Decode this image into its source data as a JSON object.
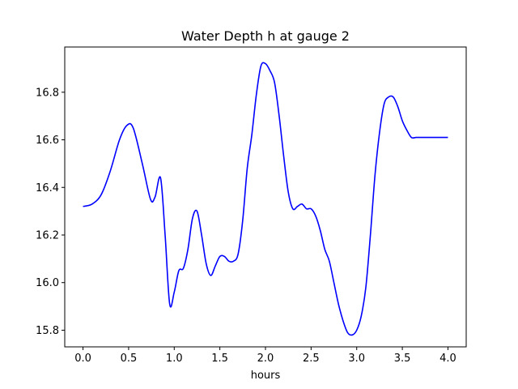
{
  "chart_data": {
    "type": "line",
    "title": "Water Depth h at gauge 2",
    "xlabel": "hours",
    "ylabel": "",
    "xlim": [
      -0.2,
      4.2
    ],
    "ylim": [
      15.73,
      16.99
    ],
    "xticks": [
      0.0,
      0.5,
      1.0,
      1.5,
      2.0,
      2.5,
      3.0,
      3.5,
      4.0
    ],
    "xtick_labels": [
      "0.0",
      "0.5",
      "1.0",
      "1.5",
      "2.0",
      "2.5",
      "3.0",
      "3.5",
      "4.0"
    ],
    "yticks": [
      15.8,
      16.0,
      16.2,
      16.4,
      16.6,
      16.8
    ],
    "ytick_labels": [
      "15.8",
      "16.0",
      "16.2",
      "16.4",
      "16.6",
      "16.8"
    ],
    "grid": false,
    "series": [
      {
        "color": "#0000ff",
        "x": [
          0.0,
          0.1,
          0.2,
          0.3,
          0.4,
          0.48,
          0.55,
          0.65,
          0.74,
          0.79,
          0.85,
          0.9,
          0.95,
          1.0,
          1.05,
          1.1,
          1.15,
          1.2,
          1.25,
          1.3,
          1.35,
          1.4,
          1.45,
          1.5,
          1.55,
          1.6,
          1.65,
          1.7,
          1.75,
          1.8,
          1.85,
          1.9,
          1.95,
          2.0,
          2.05,
          2.1,
          2.15,
          2.2,
          2.25,
          2.3,
          2.35,
          2.4,
          2.45,
          2.5,
          2.55,
          2.6,
          2.65,
          2.7,
          2.75,
          2.8,
          2.85,
          2.9,
          2.95,
          3.0,
          3.05,
          3.1,
          3.15,
          3.2,
          3.25,
          3.3,
          3.35,
          3.4,
          3.45,
          3.5,
          3.55,
          3.6,
          3.65,
          3.7,
          3.75,
          3.8,
          3.85,
          3.9,
          3.95,
          4.0
        ],
        "y": [
          16.32,
          16.33,
          16.37,
          16.47,
          16.6,
          16.66,
          16.65,
          16.5,
          16.35,
          16.36,
          16.44,
          16.2,
          15.91,
          15.96,
          16.05,
          16.06,
          16.14,
          16.27,
          16.3,
          16.2,
          16.08,
          16.03,
          16.07,
          16.11,
          16.11,
          16.09,
          16.09,
          16.12,
          16.26,
          16.48,
          16.62,
          16.79,
          16.91,
          16.92,
          16.89,
          16.84,
          16.7,
          16.53,
          16.38,
          16.31,
          16.32,
          16.33,
          16.31,
          16.31,
          16.28,
          16.22,
          16.14,
          16.09,
          16.0,
          15.91,
          15.84,
          15.79,
          15.78,
          15.8,
          15.86,
          15.98,
          16.2,
          16.45,
          16.63,
          16.75,
          16.78,
          16.78,
          16.74,
          16.68,
          16.64,
          16.61,
          16.61,
          16.61,
          16.61,
          16.61,
          16.61,
          16.61,
          16.61,
          16.61
        ]
      }
    ]
  }
}
